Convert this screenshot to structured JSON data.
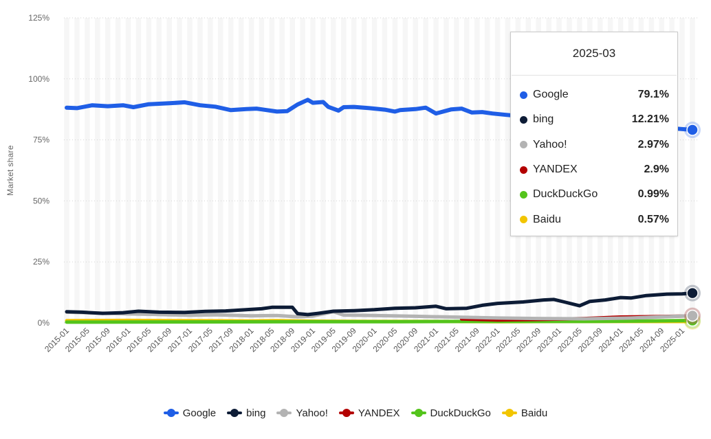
{
  "chart_data": {
    "type": "line",
    "ylabel": "Market share",
    "ylim": [
      0,
      125
    ],
    "yticks": [
      0,
      25,
      50,
      75,
      100,
      125
    ],
    "ytick_labels": [
      "0%",
      "25%",
      "50%",
      "75%",
      "100%",
      "125%"
    ],
    "x_start": "2015-01",
    "x_end": "2025-03",
    "xtick_labels": [
      "2015-01",
      "2015-05",
      "2015-09",
      "2016-01",
      "2016-05",
      "2016-09",
      "2017-01",
      "2017-05",
      "2017-09",
      "2018-01",
      "2018-05",
      "2018-09",
      "2019-01",
      "2019-05",
      "2019-09",
      "2020-01",
      "2020-05",
      "2020-09",
      "2021-01",
      "2021-05",
      "2021-09",
      "2022-01",
      "2022-05",
      "2022-09",
      "2023-01",
      "2023-05",
      "2023-09",
      "2024-01",
      "2024-05",
      "2024-09",
      "2025-01"
    ],
    "grid": "horizontal dotted",
    "legend_position": "bottom",
    "series": [
      {
        "name": "Google",
        "color": "#1f5ee6",
        "points": [
          [
            "2015-01",
            88.2
          ],
          [
            "2015-03",
            88.0
          ],
          [
            "2015-06",
            89.2
          ],
          [
            "2015-09",
            88.8
          ],
          [
            "2015-12",
            89.2
          ],
          [
            "2016-02",
            88.4
          ],
          [
            "2016-05",
            89.6
          ],
          [
            "2016-09",
            90.0
          ],
          [
            "2016-12",
            90.4
          ],
          [
            "2017-03",
            89.2
          ],
          [
            "2017-06",
            88.6
          ],
          [
            "2017-09",
            87.2
          ],
          [
            "2017-12",
            87.6
          ],
          [
            "2018-02",
            87.8
          ],
          [
            "2018-06",
            86.6
          ],
          [
            "2018-08",
            86.8
          ],
          [
            "2018-10",
            89.5
          ],
          [
            "2018-12",
            91.4
          ],
          [
            "2019-01",
            90.2
          ],
          [
            "2019-03",
            90.5
          ],
          [
            "2019-04",
            88.5
          ],
          [
            "2019-06",
            87.0
          ],
          [
            "2019-07",
            88.4
          ],
          [
            "2019-09",
            88.5
          ],
          [
            "2019-12",
            88.0
          ],
          [
            "2020-03",
            87.4
          ],
          [
            "2020-05",
            86.6
          ],
          [
            "2020-06",
            87.2
          ],
          [
            "2020-09",
            87.6
          ],
          [
            "2020-11",
            88.2
          ],
          [
            "2021-01",
            85.8
          ],
          [
            "2021-04",
            87.5
          ],
          [
            "2021-06",
            87.8
          ],
          [
            "2021-08",
            86.2
          ],
          [
            "2021-10",
            86.4
          ],
          [
            "2021-12",
            85.8
          ],
          [
            "2022-02",
            85.4
          ],
          [
            "2022-05",
            84.8
          ],
          [
            "2022-08",
            84.0
          ],
          [
            "2022-12",
            83.5
          ],
          [
            "2023-04",
            82.6
          ],
          [
            "2023-08",
            82.0
          ],
          [
            "2023-12",
            81.6
          ],
          [
            "2024-04",
            80.9
          ],
          [
            "2024-08",
            80.4
          ],
          [
            "2024-12",
            79.6
          ],
          [
            "2025-03",
            79.1
          ]
        ]
      },
      {
        "name": "bing",
        "color": "#0d1c36",
        "points": [
          [
            "2015-01",
            4.6
          ],
          [
            "2015-04",
            4.4
          ],
          [
            "2015-08",
            3.9
          ],
          [
            "2015-12",
            4.2
          ],
          [
            "2016-03",
            4.8
          ],
          [
            "2016-07",
            4.4
          ],
          [
            "2016-12",
            4.3
          ],
          [
            "2017-04",
            4.7
          ],
          [
            "2017-08",
            4.9
          ],
          [
            "2017-12",
            5.4
          ],
          [
            "2018-03",
            5.8
          ],
          [
            "2018-05",
            6.4
          ],
          [
            "2018-09",
            6.4
          ],
          [
            "2018-10",
            3.8
          ],
          [
            "2018-12",
            3.4
          ],
          [
            "2019-02",
            3.9
          ],
          [
            "2019-05",
            4.8
          ],
          [
            "2019-09",
            5.0
          ],
          [
            "2020-01",
            5.4
          ],
          [
            "2020-05",
            6.0
          ],
          [
            "2020-09",
            6.2
          ],
          [
            "2021-01",
            6.8
          ],
          [
            "2021-03",
            5.8
          ],
          [
            "2021-07",
            6.0
          ],
          [
            "2021-10",
            7.2
          ],
          [
            "2022-01",
            8.0
          ],
          [
            "2022-06",
            8.6
          ],
          [
            "2022-10",
            9.4
          ],
          [
            "2022-12",
            9.6
          ],
          [
            "2023-02",
            8.6
          ],
          [
            "2023-05",
            7.0
          ],
          [
            "2023-07",
            8.8
          ],
          [
            "2023-10",
            9.4
          ],
          [
            "2024-01",
            10.4
          ],
          [
            "2024-03",
            10.2
          ],
          [
            "2024-06",
            11.2
          ],
          [
            "2024-10",
            11.8
          ],
          [
            "2025-01",
            11.9
          ],
          [
            "2025-03",
            12.21
          ]
        ]
      },
      {
        "name": "Yahoo!",
        "color": "#b3b3b3",
        "points": [
          [
            "2015-01",
            4.4
          ],
          [
            "2015-06",
            4.1
          ],
          [
            "2016-01",
            3.7
          ],
          [
            "2016-06",
            3.5
          ],
          [
            "2017-01",
            3.1
          ],
          [
            "2017-06",
            3.3
          ],
          [
            "2018-01",
            2.9
          ],
          [
            "2018-06",
            3.0
          ],
          [
            "2018-10",
            2.5
          ],
          [
            "2019-01",
            2.8
          ],
          [
            "2019-05",
            4.6
          ],
          [
            "2019-07",
            3.2
          ],
          [
            "2020-01",
            3.0
          ],
          [
            "2020-09",
            2.7
          ],
          [
            "2021-06",
            2.3
          ],
          [
            "2022-01",
            2.0
          ],
          [
            "2022-09",
            1.8
          ],
          [
            "2023-06",
            1.7
          ],
          [
            "2024-03",
            2.0
          ],
          [
            "2025-03",
            2.97
          ]
        ]
      },
      {
        "name": "YANDEX",
        "color": "#b30000",
        "points": [
          [
            "2021-06",
            1.6
          ],
          [
            "2022-01",
            1.2
          ],
          [
            "2022-09",
            1.4
          ],
          [
            "2023-06",
            1.8
          ],
          [
            "2024-01",
            2.4
          ],
          [
            "2024-09",
            2.6
          ],
          [
            "2025-03",
            2.9
          ]
        ]
      },
      {
        "name": "DuckDuckGo",
        "color": "#54c41c",
        "points": [
          [
            "2015-01",
            0.3
          ],
          [
            "2017-01",
            0.4
          ],
          [
            "2019-01",
            0.5
          ],
          [
            "2020-06",
            0.5
          ],
          [
            "2021-06",
            0.6
          ],
          [
            "2022-06",
            0.6
          ],
          [
            "2023-06",
            0.6
          ],
          [
            "2024-06",
            0.8
          ],
          [
            "2025-03",
            0.99
          ]
        ]
      },
      {
        "name": "Baidu",
        "color": "#f2c500",
        "points": [
          [
            "2015-01",
            0.9
          ],
          [
            "2016-01",
            1.0
          ],
          [
            "2017-01",
            0.9
          ],
          [
            "2018-01",
            0.8
          ],
          [
            "2018-06",
            0.9
          ],
          [
            "2019-01",
            0.7
          ],
          [
            "2020-01",
            0.6
          ],
          [
            "2021-01",
            0.6
          ],
          [
            "2022-01",
            0.5
          ],
          [
            "2023-01",
            0.6
          ],
          [
            "2024-01",
            0.6
          ],
          [
            "2025-03",
            0.57
          ]
        ]
      }
    ]
  },
  "legend": {
    "items": [
      {
        "label": "Google",
        "color": "#1f5ee6"
      },
      {
        "label": "bing",
        "color": "#0d1c36"
      },
      {
        "label": "Yahoo!",
        "color": "#b3b3b3"
      },
      {
        "label": "YANDEX",
        "color": "#b30000"
      },
      {
        "label": "DuckDuckGo",
        "color": "#54c41c"
      },
      {
        "label": "Baidu",
        "color": "#f2c500"
      }
    ]
  },
  "tooltip": {
    "title": "2025-03",
    "rows": [
      {
        "label": "Google",
        "value": "79.1%",
        "color": "#1f5ee6"
      },
      {
        "label": "bing",
        "value": "12.21%",
        "color": "#0d1c36"
      },
      {
        "label": "Yahoo!",
        "value": "2.97%",
        "color": "#b3b3b3"
      },
      {
        "label": "YANDEX",
        "value": "2.9%",
        "color": "#b30000"
      },
      {
        "label": "DuckDuckGo",
        "value": "0.99%",
        "color": "#54c41c"
      },
      {
        "label": "Baidu",
        "value": "0.57%",
        "color": "#f2c500"
      }
    ]
  }
}
